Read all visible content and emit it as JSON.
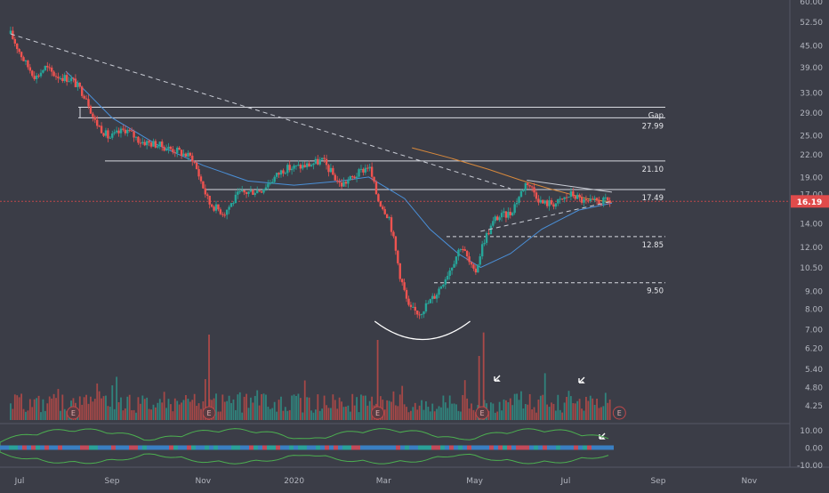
{
  "chart_data": {
    "type": "candlestick",
    "price_axis": {
      "scale": "log",
      "ticks": [
        "60.00",
        "52.50",
        "45.00",
        "39.00",
        "33.00",
        "29.00",
        "25.00",
        "22.00",
        "19.00",
        "17.00",
        "14.00",
        "12.00",
        "10.50",
        "9.00",
        "8.00",
        "7.00",
        "6.20",
        "5.40",
        "4.80",
        "4.25"
      ],
      "range": [
        4.0,
        60.0
      ]
    },
    "time_axis": {
      "labels": [
        "Jul",
        "Sep",
        "Nov",
        "2020",
        "Mar",
        "May",
        "Jul",
        "Sep",
        "Nov"
      ]
    },
    "last_price": {
      "value": 16.19,
      "label": "16.19",
      "color": "#e04b4b"
    },
    "levels": [
      {
        "label": "Gap",
        "value": 30.0,
        "style": "solid"
      },
      {
        "label": "27.99",
        "value": 27.99,
        "style": "solid"
      },
      {
        "label": "21.10",
        "value": 21.1,
        "style": "solid"
      },
      {
        "label": "17.49",
        "value": 17.49,
        "style": "solid"
      },
      {
        "label": "12.85",
        "value": 12.85,
        "style": "dashed"
      },
      {
        "label": "9.50",
        "value": 9.5,
        "style": "dashed"
      }
    ],
    "price_path": [
      [
        "2019-06-25",
        48.5
      ],
      [
        "2019-07-05",
        40
      ],
      [
        "2019-07-12",
        36.5
      ],
      [
        "2019-07-18",
        39
      ],
      [
        "2019-07-25",
        37
      ],
      [
        "2019-08-05",
        36
      ],
      [
        "2019-08-15",
        32
      ],
      [
        "2019-08-20",
        27.5
      ],
      [
        "2019-08-30",
        24.5
      ],
      [
        "2019-09-10",
        26
      ],
      [
        "2019-09-20",
        24
      ],
      [
        "2019-10-01",
        23.5
      ],
      [
        "2019-10-15",
        22.5
      ],
      [
        "2019-10-25",
        21.5
      ],
      [
        "2019-11-05",
        16
      ],
      [
        "2019-11-15",
        15
      ],
      [
        "2019-11-25",
        17
      ],
      [
        "2019-12-10",
        17.5
      ],
      [
        "2019-12-25",
        20
      ],
      [
        "2020-01-10",
        20.5
      ],
      [
        "2020-01-20",
        21.2
      ],
      [
        "2020-02-01",
        18
      ],
      [
        "2020-02-10",
        19
      ],
      [
        "2020-02-20",
        20.5
      ],
      [
        "2020-02-26",
        16.5
      ],
      [
        "2020-03-05",
        14.5
      ],
      [
        "2020-03-12",
        10
      ],
      [
        "2020-03-18",
        8
      ],
      [
        "2020-03-25",
        7.8
      ],
      [
        "2020-04-05",
        8.8
      ],
      [
        "2020-04-15",
        10.5
      ],
      [
        "2020-04-22",
        12.2
      ],
      [
        "2020-05-01",
        10
      ],
      [
        "2020-05-07",
        12.5
      ],
      [
        "2020-05-15",
        14.5
      ],
      [
        "2020-05-25",
        15
      ],
      [
        "2020-06-05",
        18.5
      ],
      [
        "2020-06-15",
        16
      ],
      [
        "2020-06-25",
        16
      ],
      [
        "2020-07-05",
        17
      ],
      [
        "2020-07-15",
        16
      ],
      [
        "2020-07-22",
        16.2
      ],
      [
        "2020-07-31",
        16.19
      ]
    ],
    "trendlines": [
      {
        "from": [
          "2019-06-25",
          48.5
        ],
        "to": [
          "2020-05-25",
          17.6
        ],
        "style": "dashed"
      },
      {
        "from": [
          "2020-06-05",
          18.6
        ],
        "to": [
          "2020-08-01",
          17.2
        ],
        "style": "solid"
      },
      {
        "from": [
          "2020-05-05",
          13.3
        ],
        "to": [
          "2020-08-01",
          16.2
        ],
        "style": "dashed"
      }
    ],
    "moving_averages": [
      {
        "color": "#4a90d9",
        "points": [
          [
            "2019-08-01",
            38
          ],
          [
            "2019-09-01",
            28
          ],
          [
            "2019-10-01",
            23.5
          ],
          [
            "2019-11-01",
            20.5
          ],
          [
            "2019-12-01",
            18.5
          ],
          [
            "2020-01-01",
            18
          ],
          [
            "2020-02-01",
            18.5
          ],
          [
            "2020-02-20",
            19
          ],
          [
            "2020-03-15",
            16.5
          ],
          [
            "2020-04-01",
            13.5
          ],
          [
            "2020-04-20",
            11.5
          ],
          [
            "2020-05-05",
            10.5
          ],
          [
            "2020-05-25",
            11.5
          ],
          [
            "2020-06-15",
            13.5
          ],
          [
            "2020-07-10",
            15.3
          ],
          [
            "2020-08-01",
            16
          ]
        ]
      },
      {
        "color": "#d8893c",
        "points": [
          [
            "2020-03-20",
            23
          ],
          [
            "2020-04-15",
            21.5
          ],
          [
            "2020-05-10",
            20
          ],
          [
            "2020-06-01",
            18.6
          ],
          [
            "2020-06-20",
            17.6
          ],
          [
            "2020-07-15",
            16.5
          ],
          [
            "2020-08-01",
            16.1
          ]
        ]
      }
    ],
    "earnings_markers": [
      "2019-08-06",
      "2019-11-05",
      "2020-02-26",
      "2020-05-06",
      "2020-08-06"
    ],
    "volume_spikes": [
      [
        "2019-11-05",
        0.8
      ],
      [
        "2020-02-26",
        0.75
      ],
      [
        "2020-05-07",
        0.82
      ],
      [
        "2020-05-04",
        0.6
      ]
    ],
    "oscillator": {
      "ticks": [
        "10.00",
        "0.00",
        "-10.00"
      ],
      "range": [
        -13,
        13
      ]
    },
    "grid": false,
    "title": ""
  }
}
